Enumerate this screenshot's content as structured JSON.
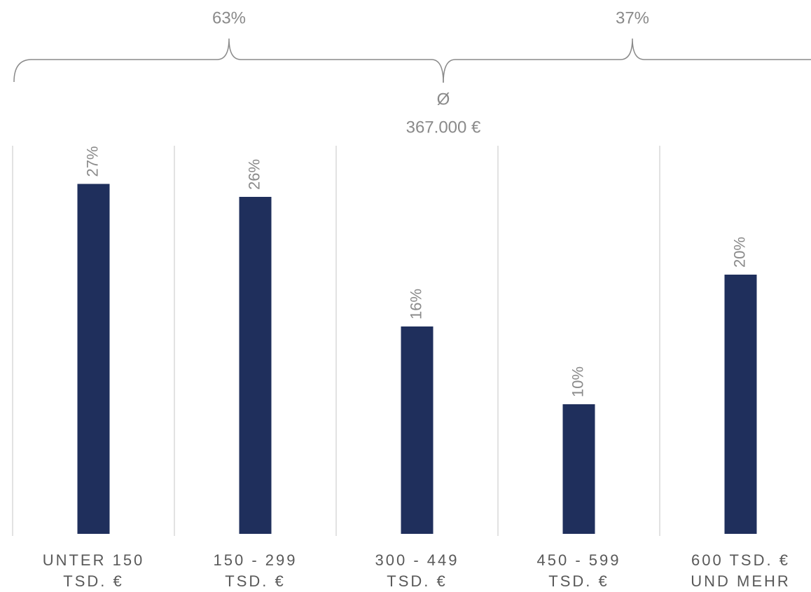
{
  "chart_data": {
    "type": "bar",
    "categories": [
      [
        "UNTER 150",
        "TSD. €"
      ],
      [
        "150 - 299",
        "TSD. €"
      ],
      [
        "300 - 449",
        "TSD. €"
      ],
      [
        "450 - 599",
        "TSD. €"
      ],
      [
        "600 TSD. €",
        "UND MEHR"
      ]
    ],
    "values": [
      27,
      26,
      16,
      10,
      20
    ],
    "value_labels": [
      "27%",
      "26%",
      "16%",
      "10%",
      "20%"
    ],
    "color": "#1f2f5c",
    "ylim": [
      0,
      30
    ],
    "brackets": [
      {
        "value": 63,
        "label": "63%"
      },
      {
        "value": 37,
        "label": "37%"
      }
    ],
    "average": {
      "symbol": "Ø",
      "value": 367000,
      "label": "367.000 €"
    }
  }
}
